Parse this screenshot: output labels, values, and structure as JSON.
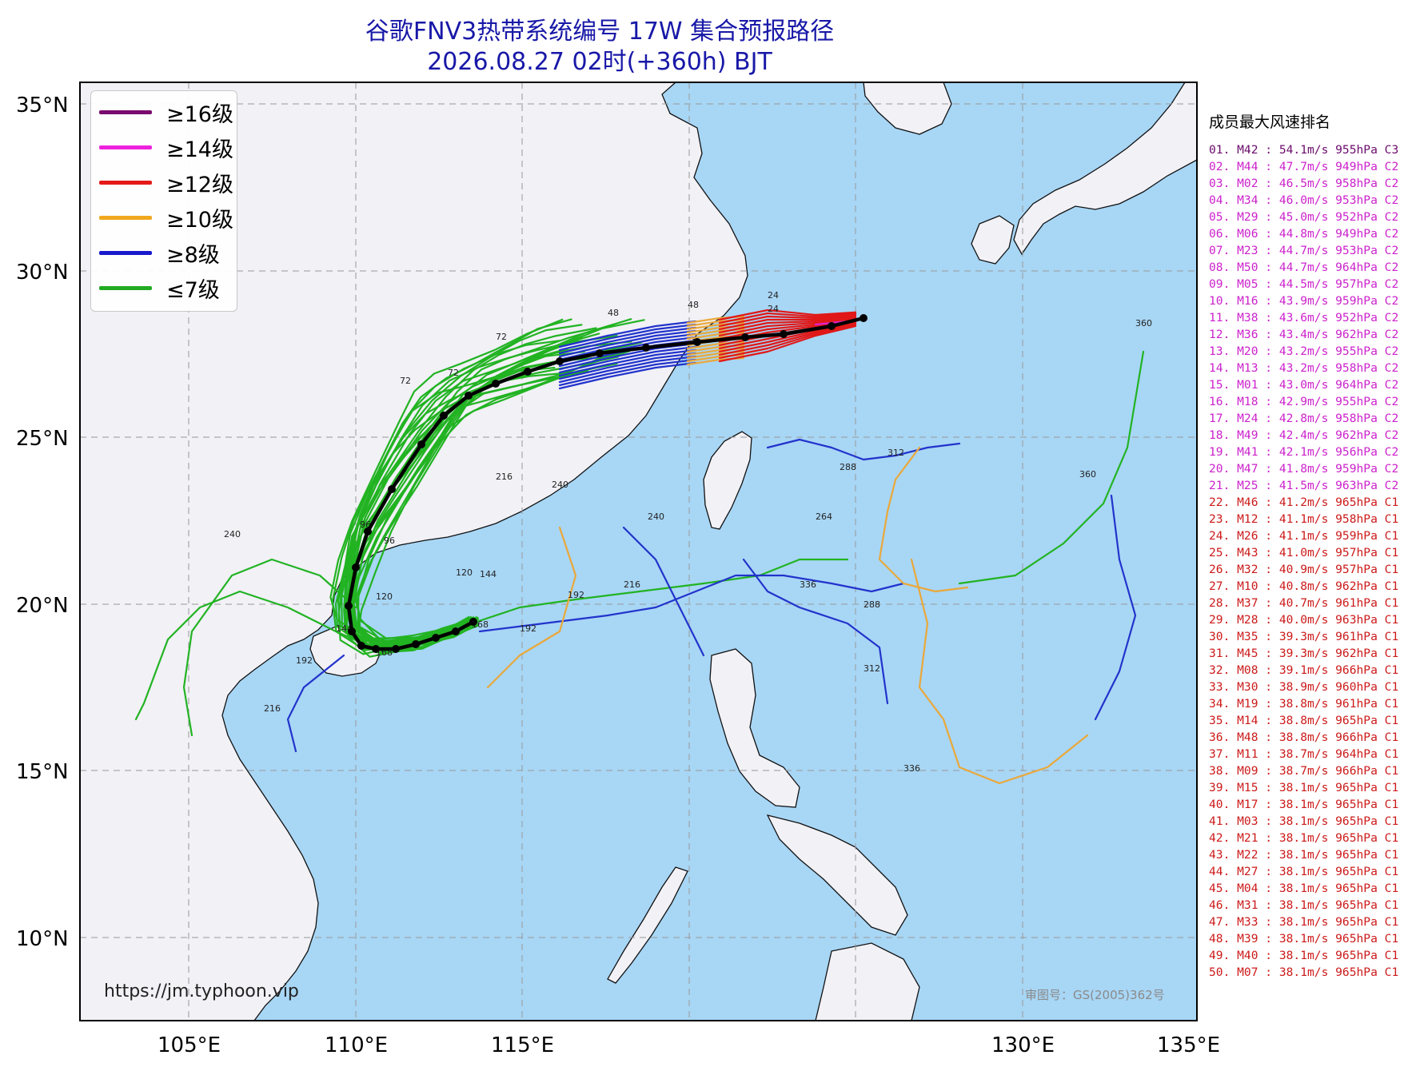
{
  "title": {
    "line1": "谷歌FNV3热带系统编号 17W 集合预报路径",
    "line2": "2026.08.27 02时(+360h) BJT"
  },
  "map": {
    "lat_labels": [
      "35°N",
      "30°N",
      "25°N",
      "20°N",
      "15°N",
      "10°N"
    ],
    "lon_labels": [
      "105°E",
      "110°E",
      "115°E",
      "130°E",
      "135°E"
    ],
    "url": "https://jm.typhoon.vip",
    "approval": "审图号：GS(2005)362号",
    "colors": {
      "land": "#f1f1f6",
      "sea": "#a8d6f5",
      "title": "#1818a8"
    }
  },
  "legend": [
    {
      "label": "≥16级",
      "color": "#7a0a6e"
    },
    {
      "label": "≥14级",
      "color": "#ee22dd"
    },
    {
      "label": "≥12级",
      "color": "#e41a1a"
    },
    {
      "label": "≥10级",
      "color": "#f0a81e"
    },
    {
      "label": "≥8级",
      "color": "#1818cc"
    },
    {
      "label": "≤7级",
      "color": "#22aa22"
    }
  ],
  "track_colors": {
    "c7": "#22b322",
    "c8": "#2233cc",
    "c10": "#eaa83a",
    "c12": "#e01818",
    "c14": "#dd22cc",
    "mean": "#000000"
  },
  "hour_labels": [
    "24",
    "48",
    "72",
    "96",
    "120",
    "144",
    "168",
    "192",
    "216",
    "240",
    "264",
    "288",
    "312",
    "336",
    "360"
  ],
  "ranking": {
    "title": "成员最大风速排名",
    "colors": {
      "C3": "#6a0a6a",
      "C2": "#cc22cc",
      "C1": "#cc1a1a"
    },
    "items": [
      {
        "text": "01. M42 : 54.1m/s 955hPa C3",
        "cat": "C3"
      },
      {
        "text": "02. M44 : 47.7m/s 949hPa C2",
        "cat": "C2"
      },
      {
        "text": "03. M02 : 46.5m/s 958hPa C2",
        "cat": "C2"
      },
      {
        "text": "04. M34 : 46.0m/s 953hPa C2",
        "cat": "C2"
      },
      {
        "text": "05. M29 : 45.0m/s 952hPa C2",
        "cat": "C2"
      },
      {
        "text": "06. M06 : 44.8m/s 949hPa C2",
        "cat": "C2"
      },
      {
        "text": "07. M23 : 44.7m/s 953hPa C2",
        "cat": "C2"
      },
      {
        "text": "08. M50 : 44.7m/s 964hPa C2",
        "cat": "C2"
      },
      {
        "text": "09. M05 : 44.5m/s 957hPa C2",
        "cat": "C2"
      },
      {
        "text": "10. M16 : 43.9m/s 959hPa C2",
        "cat": "C2"
      },
      {
        "text": "11. M38 : 43.6m/s 952hPa C2",
        "cat": "C2"
      },
      {
        "text": "12. M36 : 43.4m/s 962hPa C2",
        "cat": "C2"
      },
      {
        "text": "13. M20 : 43.2m/s 955hPa C2",
        "cat": "C2"
      },
      {
        "text": "14. M13 : 43.2m/s 958hPa C2",
        "cat": "C2"
      },
      {
        "text": "15. M01 : 43.0m/s 964hPa C2",
        "cat": "C2"
      },
      {
        "text": "16. M18 : 42.9m/s 955hPa C2",
        "cat": "C2"
      },
      {
        "text": "17. M24 : 42.8m/s 958hPa C2",
        "cat": "C2"
      },
      {
        "text": "18. M49 : 42.4m/s 962hPa C2",
        "cat": "C2"
      },
      {
        "text": "19. M41 : 42.1m/s 956hPa C2",
        "cat": "C2"
      },
      {
        "text": "20. M47 : 41.8m/s 959hPa C2",
        "cat": "C2"
      },
      {
        "text": "21. M25 : 41.5m/s 963hPa C2",
        "cat": "C2"
      },
      {
        "text": "22. M46 : 41.2m/s 965hPa C1",
        "cat": "C1"
      },
      {
        "text": "23. M12 : 41.1m/s 958hPa C1",
        "cat": "C1"
      },
      {
        "text": "24. M26 : 41.1m/s 959hPa C1",
        "cat": "C1"
      },
      {
        "text": "25. M43 : 41.0m/s 957hPa C1",
        "cat": "C1"
      },
      {
        "text": "26. M32 : 40.9m/s 957hPa C1",
        "cat": "C1"
      },
      {
        "text": "27. M10 : 40.8m/s 962hPa C1",
        "cat": "C1"
      },
      {
        "text": "28. M37 : 40.7m/s 961hPa C1",
        "cat": "C1"
      },
      {
        "text": "29. M28 : 40.0m/s 963hPa C1",
        "cat": "C1"
      },
      {
        "text": "30. M35 : 39.3m/s 961hPa C1",
        "cat": "C1"
      },
      {
        "text": "31. M45 : 39.3m/s 962hPa C1",
        "cat": "C1"
      },
      {
        "text": "32. M08 : 39.1m/s 966hPa C1",
        "cat": "C1"
      },
      {
        "text": "33. M30 : 38.9m/s 960hPa C1",
        "cat": "C1"
      },
      {
        "text": "34. M19 : 38.8m/s 961hPa C1",
        "cat": "C1"
      },
      {
        "text": "35. M14 : 38.8m/s 965hPa C1",
        "cat": "C1"
      },
      {
        "text": "36. M48 : 38.8m/s 966hPa C1",
        "cat": "C1"
      },
      {
        "text": "37. M11 : 38.7m/s 964hPa C1",
        "cat": "C1"
      },
      {
        "text": "38. M09 : 38.7m/s 966hPa C1",
        "cat": "C1"
      },
      {
        "text": "39. M15 : 38.1m/s 965hPa C1",
        "cat": "C1"
      },
      {
        "text": "40. M17 : 38.1m/s 965hPa C1",
        "cat": "C1"
      },
      {
        "text": "41. M03 : 38.1m/s 965hPa C1",
        "cat": "C1"
      },
      {
        "text": "42. M21 : 38.1m/s 965hPa C1",
        "cat": "C1"
      },
      {
        "text": "43. M22 : 38.1m/s 965hPa C1",
        "cat": "C1"
      },
      {
        "text": "44. M27 : 38.1m/s 965hPa C1",
        "cat": "C1"
      },
      {
        "text": "45. M04 : 38.1m/s 965hPa C1",
        "cat": "C1"
      },
      {
        "text": "46. M31 : 38.1m/s 965hPa C1",
        "cat": "C1"
      },
      {
        "text": "47. M33 : 38.1m/s 965hPa C1",
        "cat": "C1"
      },
      {
        "text": "48. M39 : 38.1m/s 965hPa C1",
        "cat": "C1"
      },
      {
        "text": "49. M40 : 38.1m/s 965hPa C1",
        "cat": "C1"
      },
      {
        "text": "50. M07 : 38.1m/s 965hPa C1",
        "cat": "C1"
      }
    ]
  }
}
